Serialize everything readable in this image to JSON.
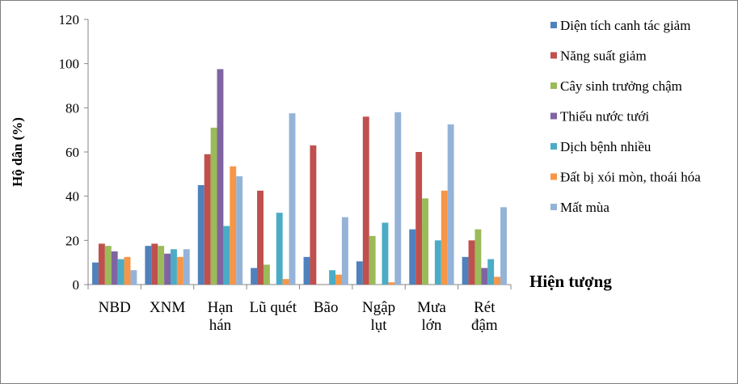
{
  "chart_data": {
    "type": "bar",
    "categories": [
      "NBD",
      "XNM",
      "Hạn\nhán",
      "Lũ quét",
      "Bão",
      "Ngập\nlụt",
      "Mưa\nlớn",
      "Rét\nđậm"
    ],
    "ylabel": "Hộ dân (%)",
    "xlabel": "Hiện tượng",
    "ylim": [
      0,
      120
    ],
    "yticks": [
      0,
      20,
      40,
      60,
      80,
      100,
      120
    ],
    "grid": false,
    "legend_position": "right",
    "series": [
      {
        "name": "Diện tích canh tác giảm",
        "color": "#4f81bd",
        "values": [
          10,
          17.5,
          45,
          7.5,
          12.5,
          10.5,
          25,
          12.5
        ]
      },
      {
        "name": "Năng suất giảm",
        "color": "#c0504d",
        "values": [
          18.5,
          18.5,
          59,
          42.5,
          63,
          76,
          60,
          20
        ]
      },
      {
        "name": "Cây sinh trưởng chậm",
        "color": "#9bbb59",
        "values": [
          17.5,
          17.5,
          71,
          9,
          0,
          22,
          39,
          25
        ]
      },
      {
        "name": "Thiếu nước tưới",
        "color": "#8064a2",
        "values": [
          15,
          14,
          97.5,
          0,
          0,
          0,
          0,
          7.5
        ]
      },
      {
        "name": "Dịch bệnh nhiều",
        "color": "#4bacc6",
        "values": [
          11.5,
          16,
          26.5,
          32.5,
          6.5,
          28,
          20,
          11.5
        ]
      },
      {
        "name": "Đất bị xói mòn, thoái hóa",
        "color": "#f79646",
        "values": [
          12.5,
          12.5,
          53.5,
          2.5,
          4.5,
          1,
          42.5,
          3.5
        ]
      },
      {
        "name": "Mất mùa",
        "color": "#95b3d7",
        "values": [
          6.5,
          16,
          49,
          77.5,
          30.5,
          78,
          72.5,
          35
        ]
      }
    ]
  }
}
